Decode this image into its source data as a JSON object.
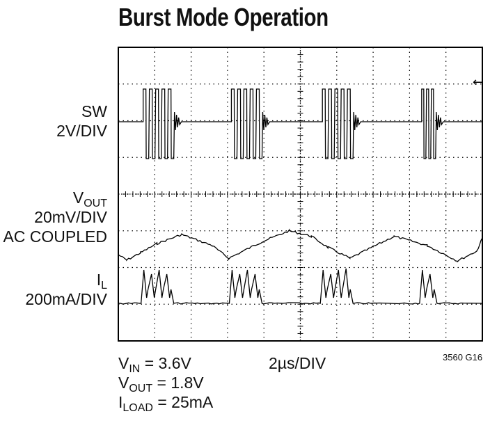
{
  "chart_data": {
    "type": "line",
    "title": "Burst Mode Operation",
    "grid": true,
    "grid_divisions": {
      "x": 10,
      "y": 8
    },
    "channels": [
      {
        "name": "SW",
        "scale": "2V/DIV",
        "waveform": "switch-node bursts",
        "bursts_at_div": [
          0.9,
          4.1,
          7.4,
          11.0
        ]
      },
      {
        "name": "VOUT",
        "name_main": "V",
        "name_sub": "OUT",
        "scale": "20mV/DIV",
        "coupling": "AC COUPLED",
        "waveform": "sawtooth ripple",
        "points_div": [
          [
            0,
            5.65
          ],
          [
            0.3,
            5.8
          ],
          [
            0.8,
            5.6
          ],
          [
            1.4,
            5.35
          ],
          [
            2.3,
            5.1
          ],
          [
            3.4,
            5.4
          ],
          [
            4.0,
            5.75
          ],
          [
            5.2,
            5.3
          ],
          [
            6.2,
            5.0
          ],
          [
            7.0,
            5.15
          ],
          [
            7.6,
            5.45
          ],
          [
            8.4,
            5.75
          ],
          [
            10.0,
            5.15
          ],
          [
            11.2,
            5.4
          ],
          [
            12.3,
            5.82
          ],
          [
            13.0,
            5.55
          ],
          [
            13.2,
            5.2
          ]
        ]
      },
      {
        "name": "IL",
        "name_main": "I",
        "name_sub": "L",
        "scale": "200mA/DIV",
        "waveform": "inductor current pulses",
        "bursts_at_div": [
          0.9,
          4.1,
          7.4,
          11.0
        ]
      }
    ],
    "time_scale": "2µs/DIV",
    "conditions": [
      {
        "main": "V",
        "sub": "IN",
        "value": " = 3.6V"
      },
      {
        "main": "V",
        "sub": "OUT",
        "value": " = 1.8V"
      },
      {
        "main": "I",
        "sub": "LOAD",
        "value": " = 25mA"
      }
    ],
    "figure_id": "3560 G16",
    "trigger_marker": "←"
  }
}
